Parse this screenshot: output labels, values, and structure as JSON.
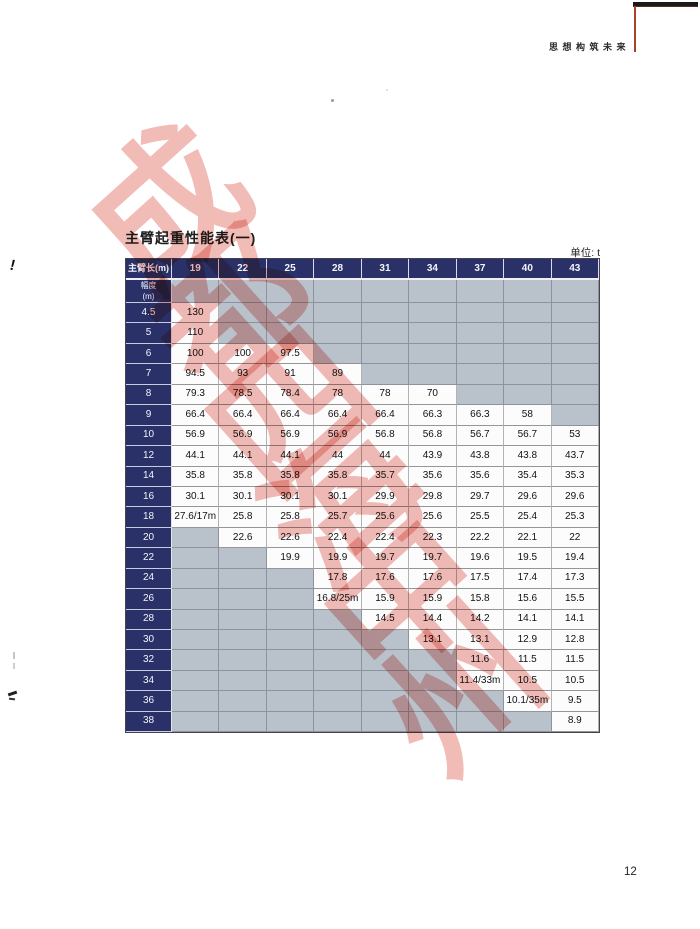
{
  "header": {
    "slogan": "思想构筑未来"
  },
  "title": "主臂起重性能表(一)",
  "unit_label": "单位: t",
  "watermark": {
    "text": "成都四海中州"
  },
  "page": {
    "number": "12"
  },
  "colors": {
    "header_navy": "#2a3168",
    "empty_cell_grey": "#b9c1cb",
    "watermark_red": "#db5448",
    "corner_line_red": "#a84030",
    "corner_bar_black": "#1a1a1a"
  },
  "table": {
    "corner_header": "主臂长(m)",
    "radius_label_line1": "幅度",
    "radius_label_line2": "(m)",
    "columns": [
      "19",
      "22",
      "25",
      "28",
      "31",
      "34",
      "37",
      "40",
      "43"
    ],
    "rows": [
      {
        "radius": "4.5",
        "values": [
          "130",
          null,
          null,
          null,
          null,
          null,
          null,
          null,
          null
        ]
      },
      {
        "radius": "5",
        "values": [
          "110",
          null,
          null,
          null,
          null,
          null,
          null,
          null,
          null
        ]
      },
      {
        "radius": "6",
        "values": [
          "100",
          "100",
          "97.5",
          null,
          null,
          null,
          null,
          null,
          null
        ]
      },
      {
        "radius": "7",
        "values": [
          "94.5",
          "93",
          "91",
          "89",
          null,
          null,
          null,
          null,
          null
        ]
      },
      {
        "radius": "8",
        "values": [
          "79.3",
          "78.5",
          "78.4",
          "78",
          "78",
          "70",
          null,
          null,
          null
        ]
      },
      {
        "radius": "9",
        "values": [
          "66.4",
          "66.4",
          "66.4",
          "66.4",
          "66.4",
          "66.3",
          "66.3",
          "58",
          null
        ]
      },
      {
        "radius": "10",
        "values": [
          "56.9",
          "56.9",
          "56.9",
          "56.9",
          "56.8",
          "56.8",
          "56.7",
          "56.7",
          "53"
        ]
      },
      {
        "radius": "12",
        "values": [
          "44.1",
          "44.1",
          "44.1",
          "44",
          "44",
          "43.9",
          "43.8",
          "43.8",
          "43.7"
        ]
      },
      {
        "radius": "14",
        "values": [
          "35.8",
          "35.8",
          "35.8",
          "35.8",
          "35.7",
          "35.6",
          "35.6",
          "35.4",
          "35.3"
        ]
      },
      {
        "radius": "16",
        "values": [
          "30.1",
          "30.1",
          "30.1",
          "30.1",
          "29.9",
          "29.8",
          "29.7",
          "29.6",
          "29.6"
        ]
      },
      {
        "radius": "18",
        "values": [
          "27.6/17m",
          "25.8",
          "25.8",
          "25.7",
          "25.6",
          "25.6",
          "25.5",
          "25.4",
          "25.3"
        ]
      },
      {
        "radius": "20",
        "values": [
          null,
          "22.6",
          "22.6",
          "22.4",
          "22.4",
          "22.3",
          "22.2",
          "22.1",
          "22"
        ]
      },
      {
        "radius": "22",
        "values": [
          null,
          null,
          "19.9",
          "19.9",
          "19.7",
          "19.7",
          "19.6",
          "19.5",
          "19.4"
        ]
      },
      {
        "radius": "24",
        "values": [
          null,
          null,
          null,
          "17.8",
          "17.6",
          "17.6",
          "17.5",
          "17.4",
          "17.3"
        ]
      },
      {
        "radius": "26",
        "values": [
          null,
          null,
          null,
          "16.8/25m",
          "15.9",
          "15.9",
          "15.8",
          "15.6",
          "15.5"
        ]
      },
      {
        "radius": "28",
        "values": [
          null,
          null,
          null,
          null,
          "14.5",
          "14.4",
          "14.2",
          "14.1",
          "14.1"
        ]
      },
      {
        "radius": "30",
        "values": [
          null,
          null,
          null,
          null,
          null,
          "13.1",
          "13.1",
          "12.9",
          "12.8"
        ]
      },
      {
        "radius": "32",
        "values": [
          null,
          null,
          null,
          null,
          null,
          null,
          "11.6",
          "11.5",
          "11.5"
        ]
      },
      {
        "radius": "34",
        "values": [
          null,
          null,
          null,
          null,
          null,
          null,
          "11.4/33m",
          "10.5",
          "10.5"
        ]
      },
      {
        "radius": "36",
        "values": [
          null,
          null,
          null,
          null,
          null,
          null,
          null,
          "10.1/35m",
          "9.5"
        ]
      },
      {
        "radius": "38",
        "values": [
          null,
          null,
          null,
          null,
          null,
          null,
          null,
          null,
          "8.9"
        ]
      }
    ]
  }
}
